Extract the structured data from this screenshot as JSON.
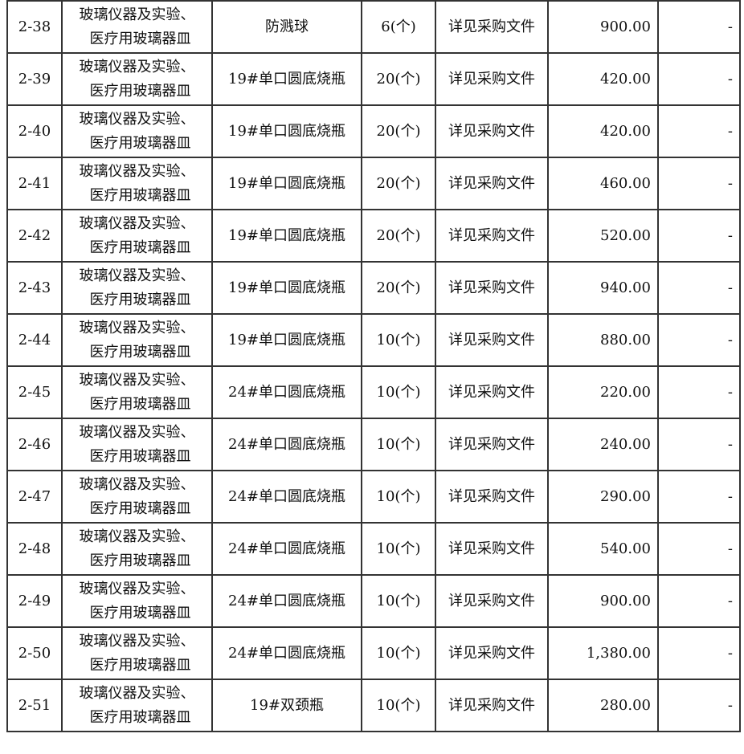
{
  "rows": [
    {
      "id": "2-38",
      "category": [
        "玻璃仪器及实验、",
        "医疗用玻璃器皿"
      ],
      "item": "防溅球",
      "qty": "6(个)",
      "spec": "详见采购文件",
      "amount": "900.00",
      "remark": "-"
    },
    {
      "id": "2-39",
      "category": [
        "玻璃仪器及实验、",
        "医疗用玻璃器皿"
      ],
      "item": "19#单口圆底烧瓶",
      "qty": "20(个)",
      "spec": "详见采购文件",
      "amount": "420.00",
      "remark": "-"
    },
    {
      "id": "2-40",
      "category": [
        "玻璃仪器及实验、",
        "医疗用玻璃器皿"
      ],
      "item": "19#单口圆底烧瓶",
      "qty": "20(个)",
      "spec": "详见采购文件",
      "amount": "420.00",
      "remark": "-"
    },
    {
      "id": "2-41",
      "category": [
        "玻璃仪器及实验、",
        "医疗用玻璃器皿"
      ],
      "item": "19#单口圆底烧瓶",
      "qty": "20(个)",
      "spec": "详见采购文件",
      "amount": "460.00",
      "remark": "-"
    },
    {
      "id": "2-42",
      "category": [
        "玻璃仪器及实验、",
        "医疗用玻璃器皿"
      ],
      "item": "19#单口圆底烧瓶",
      "qty": "20(个)",
      "spec": "详见采购文件",
      "amount": "520.00",
      "remark": "-"
    },
    {
      "id": "2-43",
      "category": [
        "玻璃仪器及实验、",
        "医疗用玻璃器皿"
      ],
      "item": "19#单口圆底烧瓶",
      "qty": "20(个)",
      "spec": "详见采购文件",
      "amount": "940.00",
      "remark": "-"
    },
    {
      "id": "2-44",
      "category": [
        "玻璃仪器及实验、",
        "医疗用玻璃器皿"
      ],
      "item": "19#单口圆底烧瓶",
      "qty": "10(个)",
      "spec": "详见采购文件",
      "amount": "880.00",
      "remark": "-"
    },
    {
      "id": "2-45",
      "category": [
        "玻璃仪器及实验、",
        "医疗用玻璃器皿"
      ],
      "item": "24#单口圆底烧瓶",
      "qty": "10(个)",
      "spec": "详见采购文件",
      "amount": "220.00",
      "remark": "-"
    },
    {
      "id": "2-46",
      "category": [
        "玻璃仪器及实验、",
        "医疗用玻璃器皿"
      ],
      "item": "24#单口圆底烧瓶",
      "qty": "10(个)",
      "spec": "详见采购文件",
      "amount": "240.00",
      "remark": "-"
    },
    {
      "id": "2-47",
      "category": [
        "玻璃仪器及实验、",
        "医疗用玻璃器皿"
      ],
      "item": "24#单口圆底烧瓶",
      "qty": "10(个)",
      "spec": "详见采购文件",
      "amount": "290.00",
      "remark": "-"
    },
    {
      "id": "2-48",
      "category": [
        "玻璃仪器及实验、",
        "医疗用玻璃器皿"
      ],
      "item": "24#单口圆底烧瓶",
      "qty": "10(个)",
      "spec": "详见采购文件",
      "amount": "540.00",
      "remark": "-"
    },
    {
      "id": "2-49",
      "category": [
        "玻璃仪器及实验、",
        "医疗用玻璃器皿"
      ],
      "item": "24#单口圆底烧瓶",
      "qty": "10(个)",
      "spec": "详见采购文件",
      "amount": "900.00",
      "remark": "-"
    },
    {
      "id": "2-50",
      "category": [
        "玻璃仪器及实验、",
        "医疗用玻璃器皿"
      ],
      "item": "24#单口圆底烧瓶",
      "qty": "10(个)",
      "spec": "详见采购文件",
      "amount": "1,380.00",
      "remark": "-"
    },
    {
      "id": "2-51",
      "category": [
        "玻璃仪器及实验、",
        "医疗用玻璃器皿"
      ],
      "item": "19#双颈瓶",
      "qty": "10(个)",
      "spec": "详见采购文件",
      "amount": "280.00",
      "remark": "-"
    }
  ]
}
